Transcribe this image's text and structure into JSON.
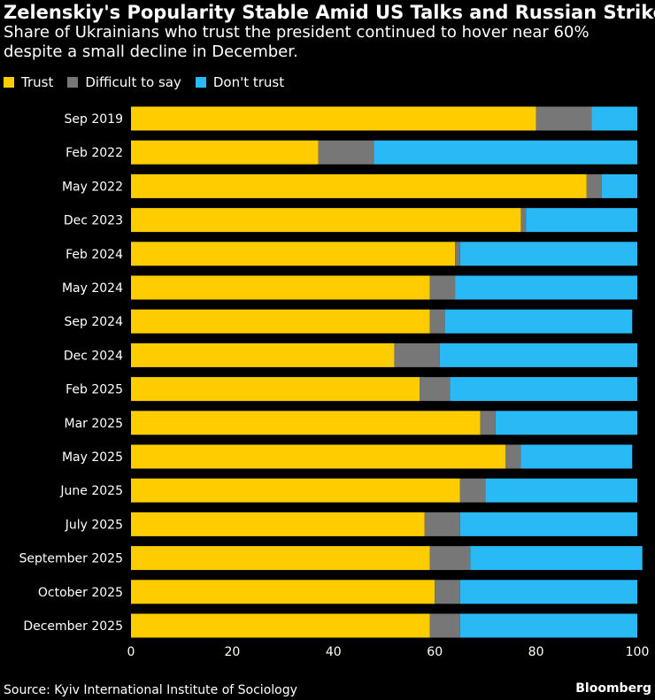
{
  "colors": {
    "trust": "#FFCC00",
    "difficult": "#777777",
    "distrust": "#29B9F5",
    "background": "#000000",
    "text": "#FFFFFF"
  },
  "chart_data": {
    "type": "bar",
    "orientation": "horizontal",
    "stacked": true,
    "title": "Zelenskiy's Popularity Stable Amid US Talks and Russian Strikes",
    "subtitle": "Share of Ukrainians who trust the president continued to hover near 60% despite a small decline in December.",
    "categories": [
      "Sep 2019",
      "Feb 2022",
      "May 2022",
      "Dec 2023",
      "Feb 2024",
      "May 2024",
      "Sep 2024",
      "Dec 2024",
      "Feb 2025",
      "Mar 2025",
      "May 2025",
      "June 2025",
      "July 2025",
      "September 2025",
      "October 2025",
      "December 2025"
    ],
    "series": [
      {
        "name": "Trust",
        "values": [
          80,
          37,
          90,
          77,
          64,
          59,
          59,
          52,
          57,
          69,
          74,
          65,
          58,
          59,
          60,
          59
        ]
      },
      {
        "name": "Difficult to say",
        "values": [
          11,
          11,
          3,
          1,
          1,
          5,
          3,
          9,
          6,
          3,
          3,
          5,
          7,
          8,
          5,
          6
        ]
      },
      {
        "name": "Don't trust",
        "values": [
          9,
          52,
          7,
          22,
          35,
          36,
          37,
          39,
          37,
          28,
          22,
          30,
          35,
          34,
          35,
          35
        ]
      }
    ],
    "xlim": [
      0,
      100
    ],
    "xticks": [
      0,
      20,
      40,
      60,
      80,
      100
    ],
    "xlabel": "",
    "ylabel": "",
    "legend": "top-left",
    "grid": false
  },
  "source": "Source: Kyiv International Institute of Sociology",
  "brand": "Bloomberg"
}
